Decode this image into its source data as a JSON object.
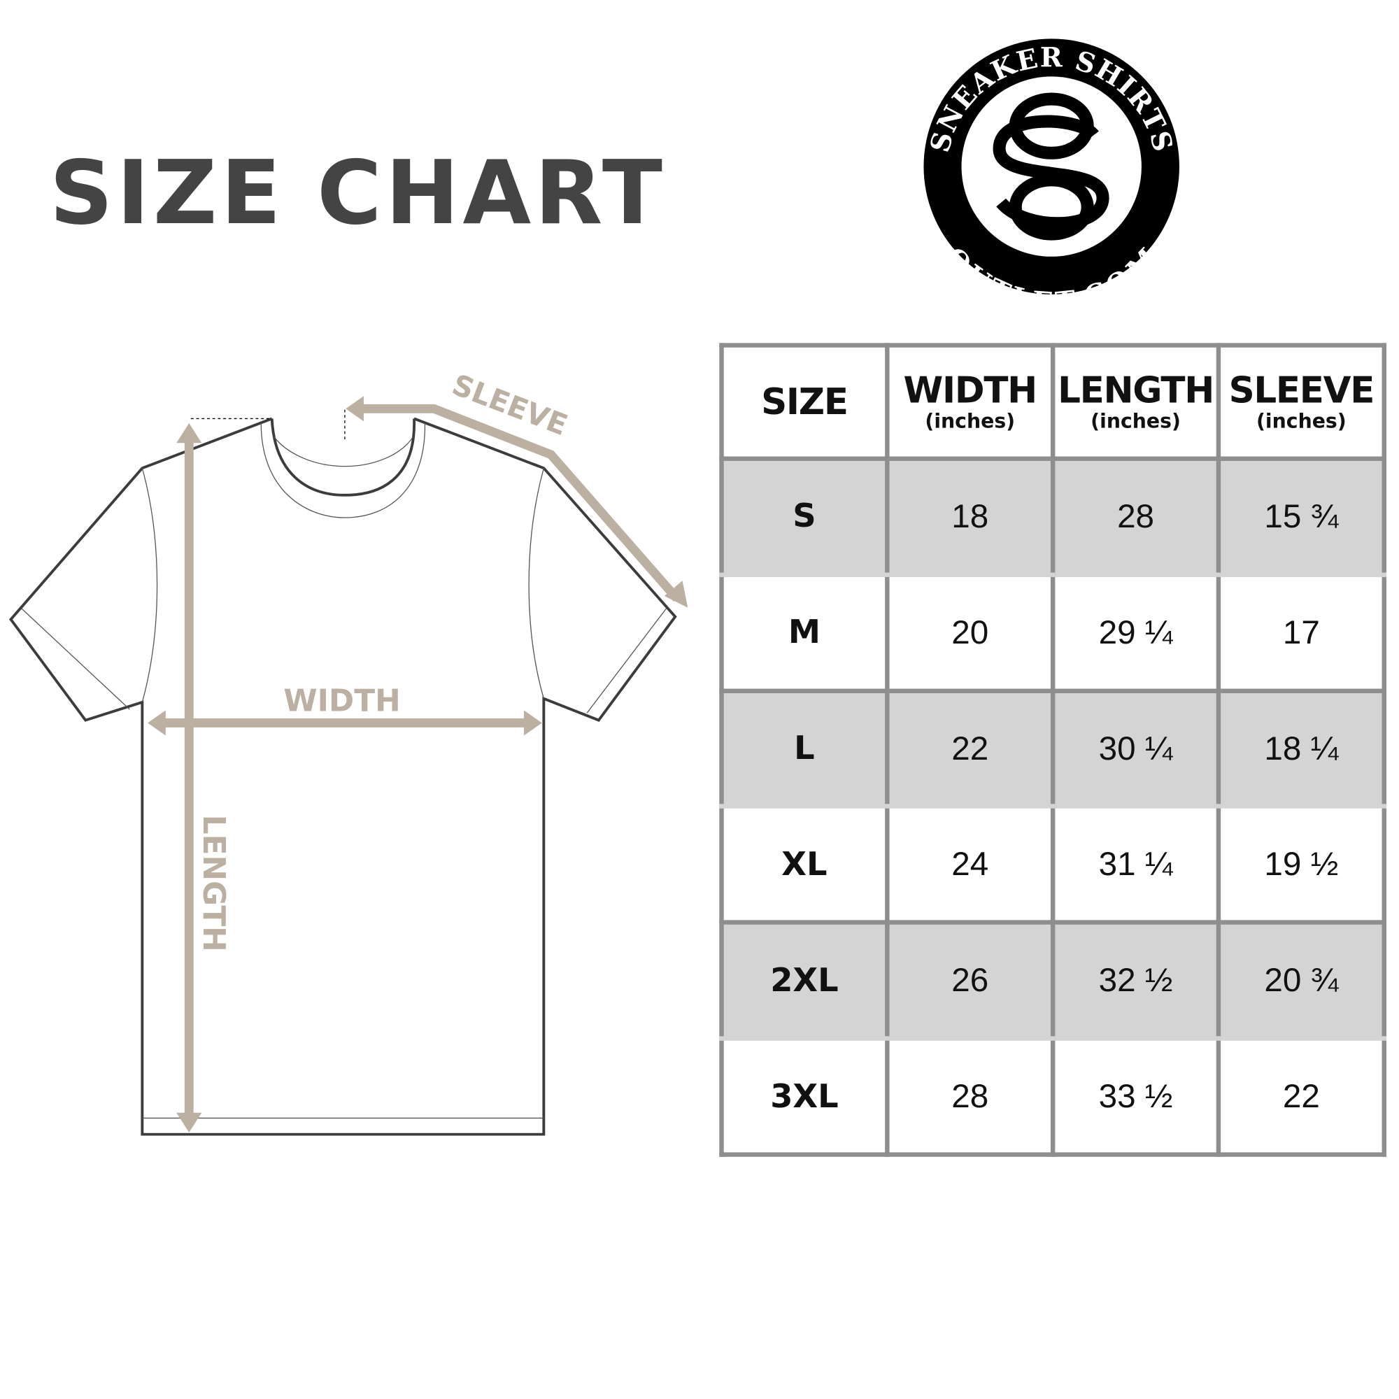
{
  "title": {
    "word1": "SIZE",
    "word2": "CHART"
  },
  "logo": {
    "top_text": "SNEAKER SHIRTS",
    "bottom_text": "OUTLET.COM",
    "monogram": "SO"
  },
  "diagram": {
    "sleeve_label": "SLEEVE",
    "width_label": "WIDTH",
    "length_label": "LENGTH",
    "measure_color": "#bbb0a1",
    "outline_color": "#3c3c3c"
  },
  "table": {
    "headers": [
      {
        "label": "SIZE",
        "unit": ""
      },
      {
        "label": "WIDTH",
        "unit": "(inches)"
      },
      {
        "label": "LENGTH",
        "unit": "(inches)"
      },
      {
        "label": "SLEEVE",
        "unit": "(inches)"
      }
    ],
    "rows": [
      [
        "S",
        "18",
        "28",
        "15 ¾"
      ],
      [
        "M",
        "20",
        "29 ¼",
        "17"
      ],
      [
        "L",
        "22",
        "30 ¼",
        "18 ¼"
      ],
      [
        "XL",
        "24",
        "31 ¼",
        "19 ½"
      ],
      [
        "2XL",
        "26",
        "32 ½",
        "20 ¾"
      ],
      [
        "3XL",
        "28",
        "33 ½",
        "22"
      ]
    ],
    "stripe_color": "#d4d4d4",
    "border_color": "#8e8e8e"
  }
}
